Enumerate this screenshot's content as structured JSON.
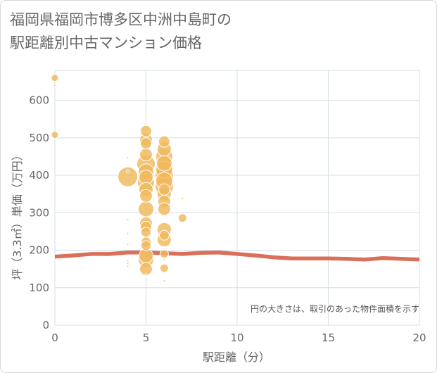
{
  "title_line1": "福岡県福岡市博多区中洲中島町の",
  "title_line2": "駅距離別中古マンション価格",
  "chart_data": {
    "type": "scatter",
    "title": "福岡県福岡市博多区中洲中島町の駅距離別中古マンション価格",
    "xlabel": "駅距離（分）",
    "ylabel": "坪（3.3㎡）単価（万円）",
    "xlim": [
      0,
      20
    ],
    "ylim": [
      0,
      680
    ],
    "x_ticks": [
      0,
      5,
      10,
      15,
      20
    ],
    "y_ticks": [
      0,
      100,
      200,
      300,
      400,
      500,
      600
    ],
    "annotation": "円の大きさは、取引のあった物件面積を示す",
    "colors": {
      "bubble": "#f0b85c",
      "trend": "#d9705a",
      "grid": "#d5dfe8"
    },
    "scatter_points": [
      {
        "x": 0,
        "y": 660,
        "s": 5
      },
      {
        "x": 0,
        "y": 640,
        "s": 1.5
      },
      {
        "x": 0,
        "y": 508,
        "s": 5
      },
      {
        "x": 4,
        "y": 447,
        "s": 1.5
      },
      {
        "x": 4,
        "y": 396,
        "s": 14
      },
      {
        "x": 4,
        "y": 410,
        "s": 2
      },
      {
        "x": 4,
        "y": 282,
        "s": 1.5
      },
      {
        "x": 4,
        "y": 245,
        "s": 1.5
      },
      {
        "x": 4,
        "y": 215,
        "s": 1.5
      },
      {
        "x": 4,
        "y": 172,
        "s": 1.5
      },
      {
        "x": 4,
        "y": 165,
        "s": 1.5
      },
      {
        "x": 4,
        "y": 157,
        "s": 1.5
      },
      {
        "x": 5,
        "y": 518,
        "s": 8
      },
      {
        "x": 5,
        "y": 495,
        "s": 9
      },
      {
        "x": 5,
        "y": 485,
        "s": 8
      },
      {
        "x": 5,
        "y": 455,
        "s": 9
      },
      {
        "x": 5,
        "y": 430,
        "s": 13
      },
      {
        "x": 5,
        "y": 410,
        "s": 11
      },
      {
        "x": 5,
        "y": 395,
        "s": 10
      },
      {
        "x": 5,
        "y": 380,
        "s": 12
      },
      {
        "x": 5,
        "y": 362,
        "s": 10
      },
      {
        "x": 5,
        "y": 345,
        "s": 9
      },
      {
        "x": 5,
        "y": 310,
        "s": 11
      },
      {
        "x": 5,
        "y": 272,
        "s": 9
      },
      {
        "x": 5,
        "y": 262,
        "s": 8
      },
      {
        "x": 5,
        "y": 248,
        "s": 7
      },
      {
        "x": 5,
        "y": 222,
        "s": 7
      },
      {
        "x": 5,
        "y": 212,
        "s": 7
      },
      {
        "x": 5,
        "y": 185,
        "s": 10
      },
      {
        "x": 5,
        "y": 175,
        "s": 11
      },
      {
        "x": 5,
        "y": 150,
        "s": 9
      },
      {
        "x": 5,
        "y": 134,
        "s": 1.5
      },
      {
        "x": 6,
        "y": 490,
        "s": 8
      },
      {
        "x": 6,
        "y": 470,
        "s": 10
      },
      {
        "x": 6,
        "y": 450,
        "s": 12
      },
      {
        "x": 6,
        "y": 432,
        "s": 11
      },
      {
        "x": 6,
        "y": 415,
        "s": 12
      },
      {
        "x": 6,
        "y": 400,
        "s": 13
      },
      {
        "x": 6,
        "y": 385,
        "s": 12
      },
      {
        "x": 6,
        "y": 370,
        "s": 13
      },
      {
        "x": 6,
        "y": 362,
        "s": 8
      },
      {
        "x": 6,
        "y": 350,
        "s": 10
      },
      {
        "x": 6,
        "y": 330,
        "s": 9
      },
      {
        "x": 6,
        "y": 310,
        "s": 9
      },
      {
        "x": 6,
        "y": 255,
        "s": 10
      },
      {
        "x": 6,
        "y": 240,
        "s": 7
      },
      {
        "x": 6,
        "y": 228,
        "s": 10
      },
      {
        "x": 6,
        "y": 190,
        "s": 6
      },
      {
        "x": 6,
        "y": 175,
        "s": 1.5
      },
      {
        "x": 6,
        "y": 152,
        "s": 6
      },
      {
        "x": 6,
        "y": 118,
        "s": 1.5
      },
      {
        "x": 7,
        "y": 338,
        "s": 1.5
      },
      {
        "x": 7,
        "y": 286,
        "s": 6
      }
    ],
    "trend_line": {
      "x": [
        0,
        1,
        2,
        3,
        4,
        5,
        6,
        7,
        8,
        9,
        10,
        11,
        12,
        13,
        14,
        15,
        16,
        17,
        18,
        19,
        20
      ],
      "y": [
        183,
        186,
        190,
        190,
        194,
        194,
        192,
        190,
        193,
        194,
        190,
        186,
        181,
        178,
        178,
        178,
        177,
        175,
        179,
        177,
        175
      ]
    }
  }
}
